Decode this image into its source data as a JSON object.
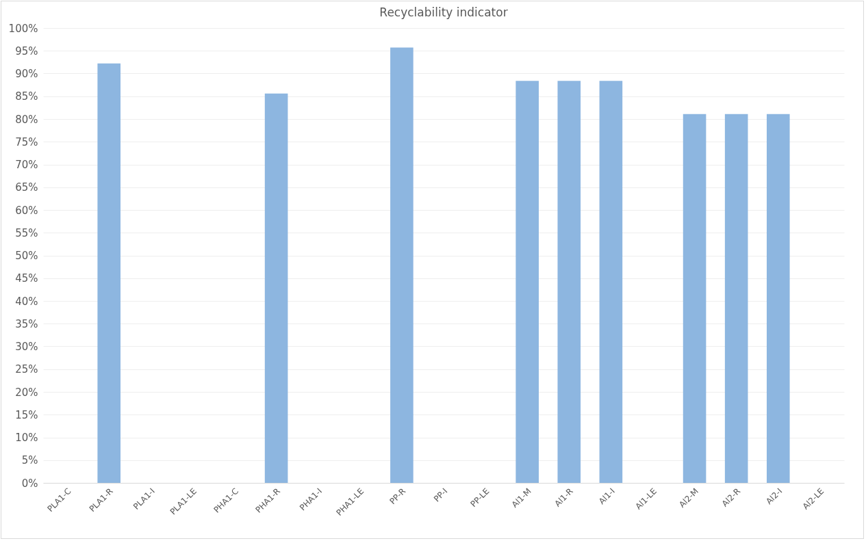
{
  "chart_data": {
    "type": "bar",
    "title": "Recyclability indicator",
    "categories": [
      "PLA1-C",
      "PLA1-R",
      "PLA1-I",
      "PLA1-LE",
      "PHA1-C",
      "PHA1-R",
      "PHA1-I",
      "PHA1-LE",
      "PP-R",
      "PP-I",
      "PP-LE",
      "Al1-M",
      "Al1-R",
      "Al1-I",
      "Al1-LE",
      "Al2-M",
      "Al2-R",
      "Al2-I",
      "Al2-LE"
    ],
    "values": [
      null,
      92.2,
      null,
      null,
      null,
      85.6,
      null,
      null,
      95.7,
      null,
      null,
      88.4,
      88.4,
      88.4,
      null,
      81.1,
      81.1,
      81.1,
      null
    ],
    "color": "#8db6e0",
    "ylim": [
      0,
      100
    ],
    "yticks": [
      {
        "value": 0,
        "label": "0%"
      },
      {
        "value": 5,
        "label": "5%"
      },
      {
        "value": 10,
        "label": "10%"
      },
      {
        "value": 15,
        "label": "15%"
      },
      {
        "value": 20,
        "label": "20%"
      },
      {
        "value": 25,
        "label": "25%"
      },
      {
        "value": 30,
        "label": "30%"
      },
      {
        "value": 35,
        "label": "35%"
      },
      {
        "value": 40,
        "label": "40%"
      },
      {
        "value": 45,
        "label": "45%"
      },
      {
        "value": 50,
        "label": "50%"
      },
      {
        "value": 55,
        "label": "55%"
      },
      {
        "value": 60,
        "label": "60%"
      },
      {
        "value": 65,
        "label": "65%"
      },
      {
        "value": 70,
        "label": "70%"
      },
      {
        "value": 75,
        "label": "75%"
      },
      {
        "value": 80,
        "label": "80%"
      },
      {
        "value": 85,
        "label": "85%"
      },
      {
        "value": 90,
        "label": "90%"
      },
      {
        "value": 95,
        "label": "95%"
      },
      {
        "value": 100,
        "label": "100%"
      }
    ],
    "grid": "y"
  }
}
